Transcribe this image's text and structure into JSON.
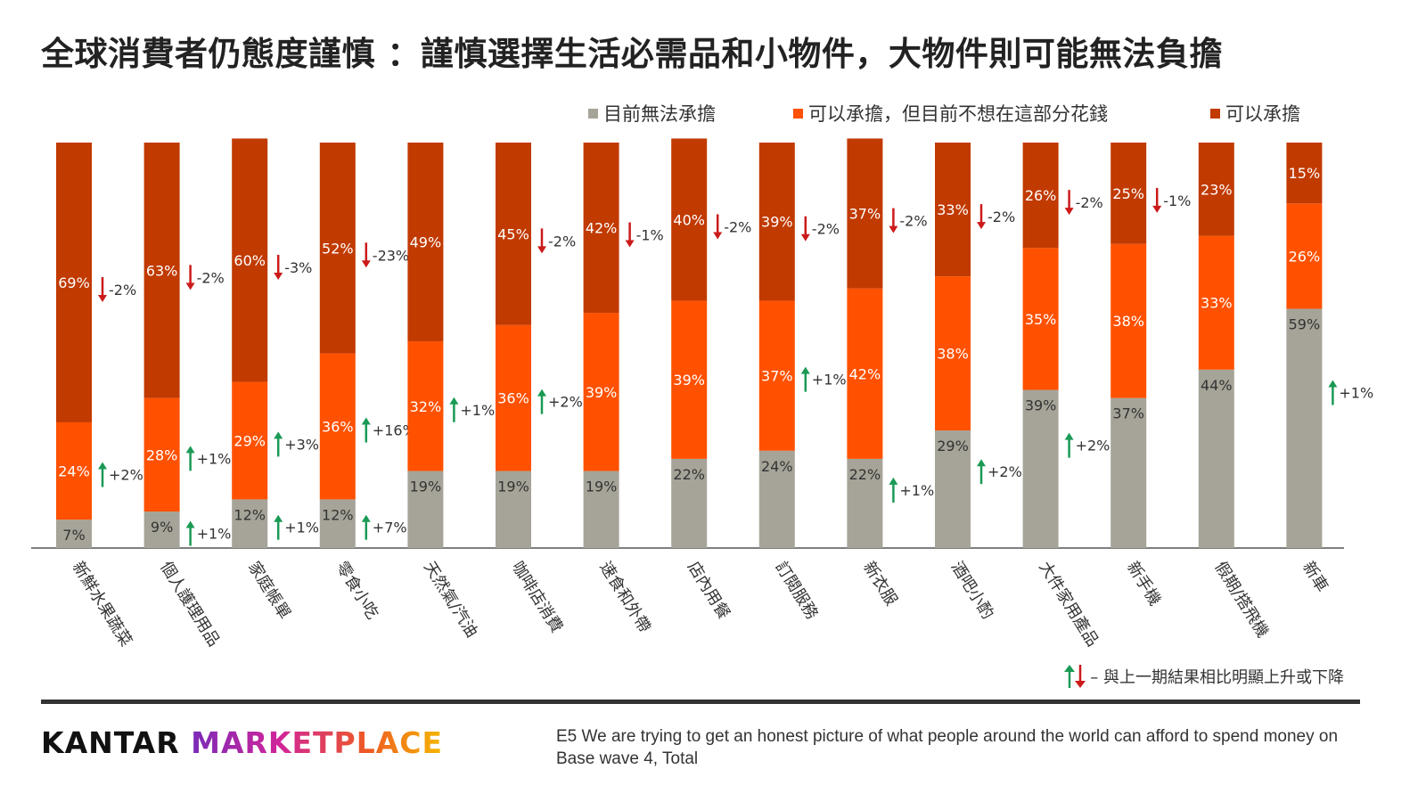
{
  "title": "全球消費者仍態度謹慎 ：謹慎選擇生活必需品和小物件，大物件則可能無法負擔",
  "colors": {
    "cannot_afford": "#a6a498",
    "can_afford_not_spend": "#ff5100",
    "can_afford": "#c13a00",
    "up_arrow": "#1a9a55",
    "down_arrow": "#cc1a1a"
  },
  "legend": [
    {
      "label": "目前無法承擔",
      "color": "#a6a498"
    },
    {
      "label": "可以承擔，但目前不想在這部分花錢",
      "color": "#ff5100"
    },
    {
      "label": "可以承擔",
      "color": "#c13a00"
    }
  ],
  "chart_data": {
    "type": "bar",
    "stacked": true,
    "categories": [
      "新鮮水果蔬菜",
      "個人護理用品",
      "家庭帳單",
      "零食小吃",
      "天然氣/汽油",
      "咖啡店消費",
      "速食和外帶",
      "店內用餐",
      "訂閱服務",
      "新衣服",
      "酒吧小酌",
      "大件家用產品",
      "新手機",
      "假期/搭飛機",
      "新車"
    ],
    "series": [
      {
        "name": "目前無法承擔",
        "values": [
          7,
          9,
          12,
          12,
          19,
          19,
          19,
          22,
          24,
          22,
          29,
          39,
          37,
          44,
          59
        ],
        "changes": [
          "",
          "+1%",
          "+1%",
          "+7%",
          "",
          "",
          "",
          "",
          "",
          "",
          "",
          "",
          "",
          "",
          ""
        ]
      },
      {
        "name": "可以承擔，但目前不想在這部分花錢",
        "values": [
          24,
          28,
          29,
          36,
          32,
          36,
          39,
          39,
          37,
          42,
          38,
          35,
          38,
          33,
          26
        ],
        "changes": [
          "+2%",
          "+1%",
          "+3%",
          "+16%",
          "+1%",
          "+2%",
          "",
          "",
          "+1%",
          "",
          "",
          "",
          "",
          "",
          ""
        ]
      },
      {
        "name": "可以承擔",
        "values": [
          69,
          63,
          60,
          52,
          49,
          45,
          42,
          40,
          39,
          37,
          33,
          26,
          25,
          23,
          15
        ],
        "changes": [
          "-2%",
          "-2%",
          "-3%",
          "-23%",
          "",
          "-2%",
          "-1%",
          "-2%",
          "-2%",
          "-2%",
          "-2%",
          "-2%",
          "-1%",
          "",
          ""
        ]
      }
    ],
    "extra_changes": [
      {
        "category": "新衣服",
        "value": "+1%"
      },
      {
        "category": "酒吧小酌",
        "value": "+2%"
      },
      {
        "category": "大件家用產品",
        "value": "+2%"
      },
      {
        "category": "新車",
        "value": "+1%"
      }
    ],
    "ylim": [
      0,
      100
    ],
    "legend_position": "top-right"
  },
  "change_note": "– 與上一期結果相比明顯上升或下降",
  "logo": {
    "part1": "KANTAR",
    "part2": "MARKETPLACE"
  },
  "footnote": {
    "line1": "E5 We are trying to get an honest picture of what people around the world can afford to spend money on",
    "line2": "Base wave 4, Total"
  }
}
